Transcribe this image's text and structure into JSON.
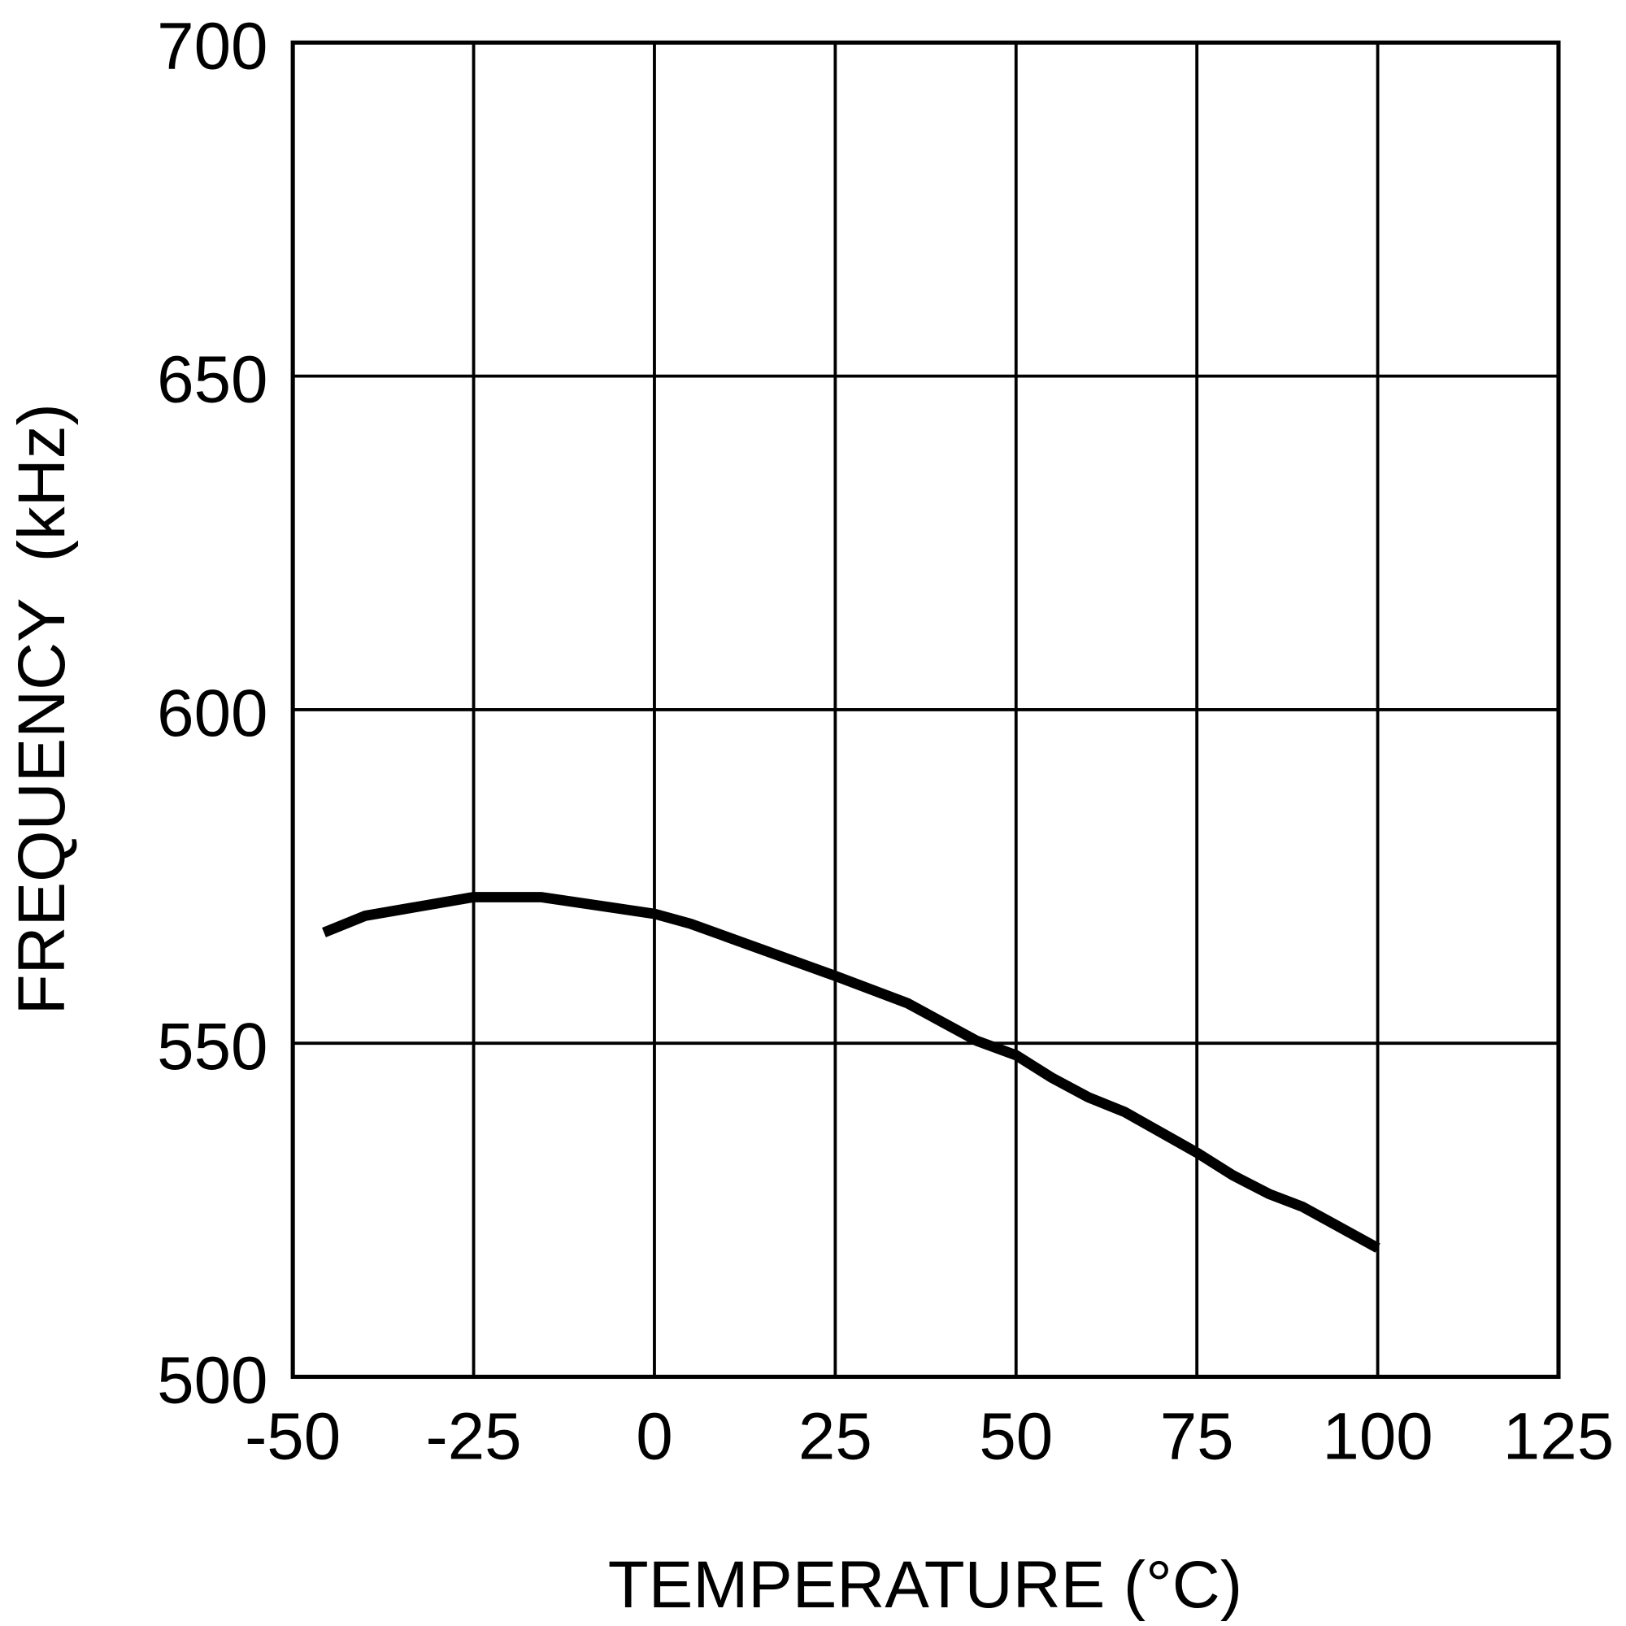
{
  "chart_data": {
    "type": "line",
    "title": "",
    "xlabel": "TEMPERATURE (°C)",
    "ylabel": "FREQUENCY  (kHz)",
    "xlim": [
      -50,
      125
    ],
    "ylim": [
      500,
      700
    ],
    "xticks": [
      "-50",
      "-25",
      "0",
      "25",
      "50",
      "75",
      "100",
      "125"
    ],
    "yticks": [
      "500",
      "550",
      "600",
      "650",
      "700"
    ],
    "grid": true,
    "line_color": "#000000",
    "series": [
      {
        "x": [
          -45.7,
          -40,
          -25,
          -15.7,
          0,
          5,
          25,
          35,
          44.5,
          50,
          55,
          60,
          65,
          75,
          80,
          85,
          89.6,
          100
        ],
        "y": [
          566.6,
          569.1,
          571.9,
          571.9,
          569.4,
          567.9,
          560.1,
          556.0,
          550.4,
          548.2,
          544.8,
          541.9,
          539.7,
          533.6,
          530.2,
          527.4,
          525.5,
          519.3
        ]
      }
    ]
  }
}
